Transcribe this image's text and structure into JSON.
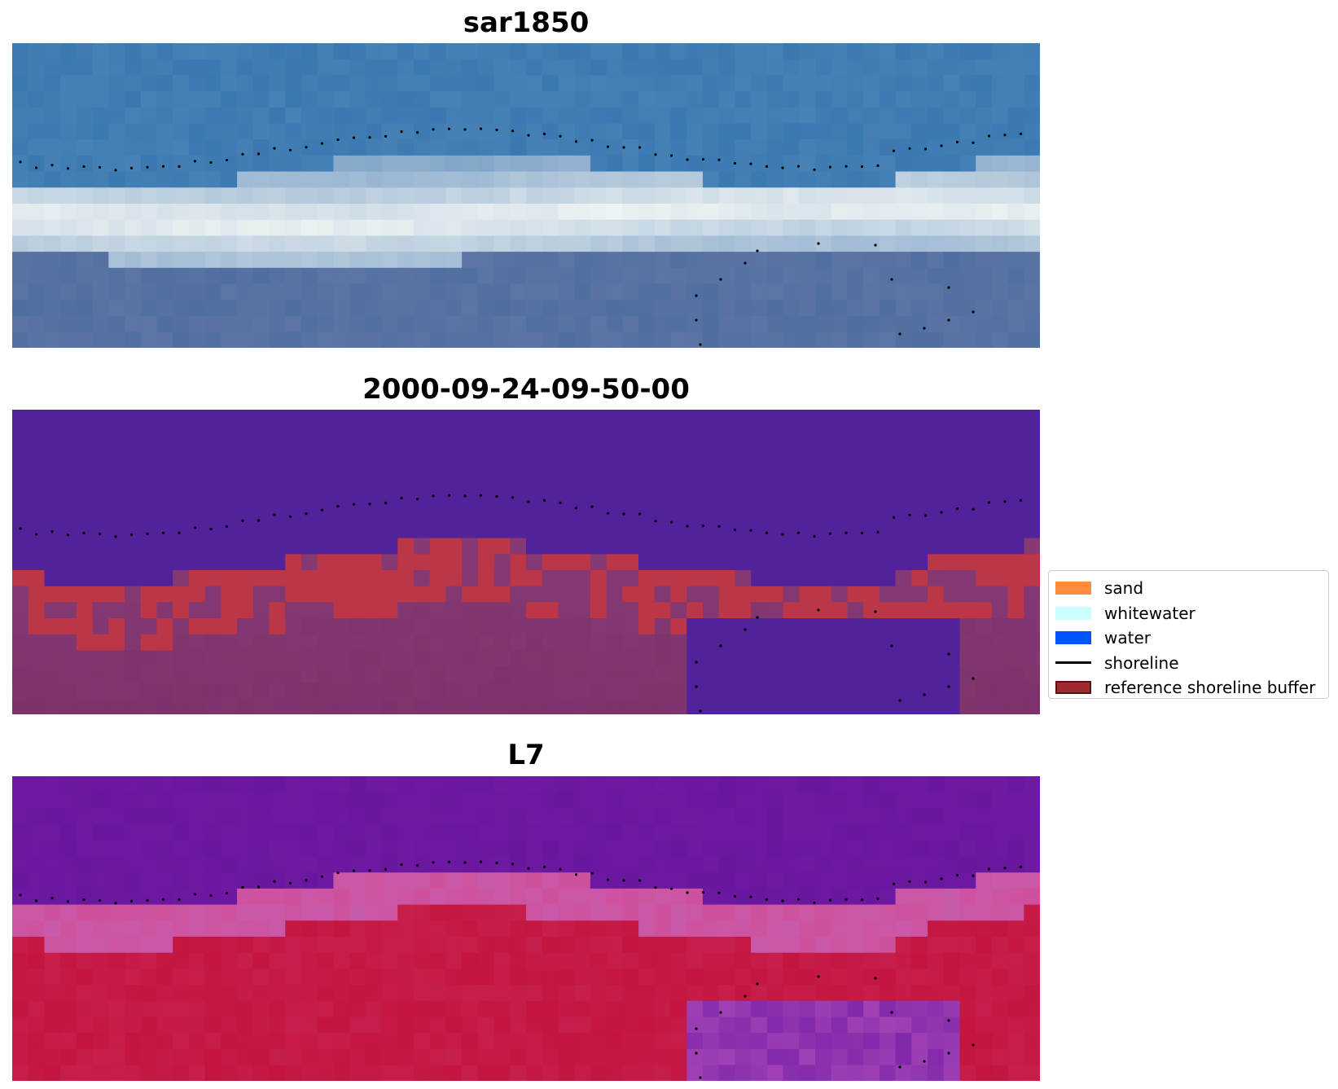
{
  "panels": [
    {
      "title": "sar1850",
      "style": "rgb"
    },
    {
      "title": "2000-09-24-09-50-00",
      "style": "classified"
    },
    {
      "title": "L7",
      "style": "index"
    }
  ],
  "legend": {
    "items": [
      {
        "label": "sand",
        "color": "#ff8c3a",
        "kind": "patch"
      },
      {
        "label": "whitewater",
        "color": "#ccffff",
        "kind": "patch"
      },
      {
        "label": "water",
        "color": "#0055ff",
        "kind": "patch"
      },
      {
        "label": "shoreline",
        "color": "#000000",
        "kind": "line"
      },
      {
        "label": "reference shoreline buffer",
        "color": "#9e2a2f",
        "kind": "patch"
      }
    ]
  },
  "colors": {
    "rgb_water": "#3a78b0",
    "rgb_surf": "#e4ecef",
    "classified_water": "#512299",
    "classified_buffer": "#bb3647",
    "classified_land": "#8a3f7a",
    "index_water": "#6a17a0",
    "index_land": "#c3153f",
    "shoreline_points": "#000000"
  }
}
